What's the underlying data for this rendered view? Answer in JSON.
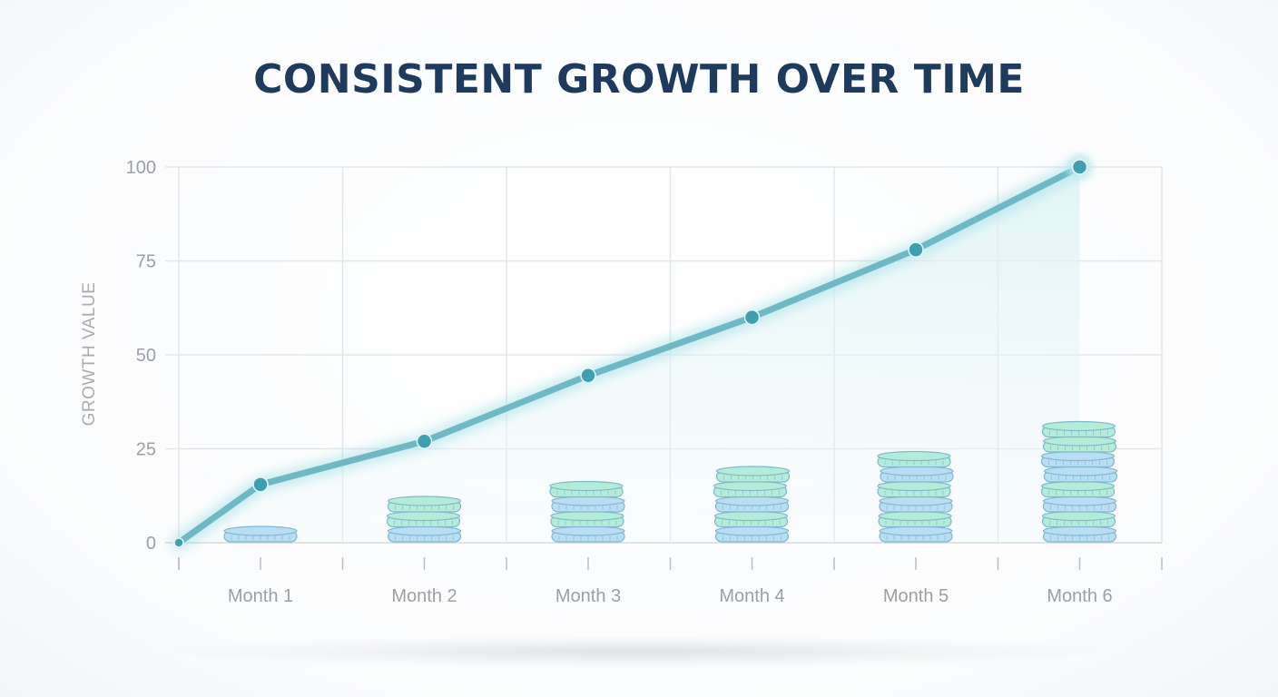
{
  "chart_data": {
    "type": "line",
    "title": "CONSISTENT GROWTH OVER TIME",
    "xlabel": "",
    "ylabel": "GROWTH VALUE",
    "categories": [
      "Month 1",
      "Month 2",
      "Month 3",
      "Month 4",
      "Month 5",
      "Month 6"
    ],
    "yticks": [
      "0",
      "25",
      "50",
      "75",
      "100"
    ],
    "ylim": [
      0,
      100
    ],
    "series": [
      {
        "x": [
          "start",
          "Month 1",
          "Month 2",
          "Month 3",
          "Month 4",
          "Month 5",
          "Month 6"
        ],
        "values": [
          0,
          15.5,
          27,
          44.5,
          60,
          78,
          100
        ]
      }
    ],
    "coin_stacks": [
      1,
      3,
      4,
      5,
      6,
      8
    ],
    "grid": true,
    "colors": {
      "line": "#6fb8c4",
      "marker": "#3f9fb0",
      "coin_blue": "#b9ddf3",
      "coin_green": "#b4ecd9",
      "coin_stroke": "#7fb8cf",
      "title": "#1e3a5c",
      "grid": "#e3e6e9"
    }
  }
}
